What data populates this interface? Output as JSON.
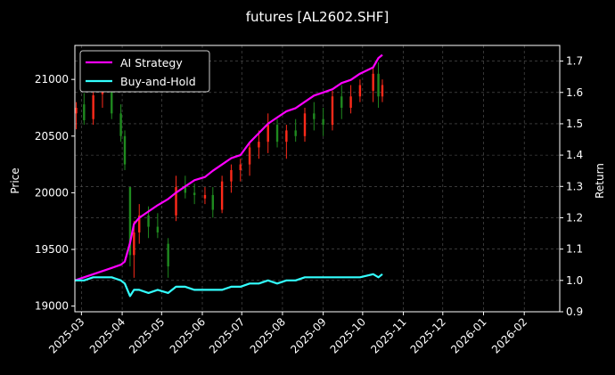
{
  "chart_data": {
    "type": "line",
    "title": "futures [AL2602.SHF]",
    "xlabel": "",
    "ylabel": "Price",
    "y2label": "Return",
    "x_ticks": [
      "2025-03",
      "2025-04",
      "2025-05",
      "2025-06",
      "2025-07",
      "2025-08",
      "2025-09",
      "2025-10",
      "2025-11",
      "2025-12",
      "2026-01",
      "2026-02"
    ],
    "xlim": [
      "2025-02-24",
      "2026-02-28"
    ],
    "ylim": [
      18950,
      21300
    ],
    "y_ticks": [
      19000,
      19500,
      20000,
      20500,
      21000
    ],
    "y2lim": [
      0.9,
      1.75
    ],
    "y2_ticks": [
      "0.9",
      "1.0",
      "1.1",
      "1.2",
      "1.3",
      "1.4",
      "1.5",
      "1.6",
      "1.7"
    ],
    "grid": true,
    "legend_position": "top-left",
    "candles": {
      "up_color": "#ff2a1a",
      "down_color": "#1f8a1f",
      "ohlc": [
        {
          "date": "2025-02-25",
          "open": 20700,
          "high": 20800,
          "low": 20560,
          "close": 20750
        },
        {
          "date": "2025-03-03",
          "open": 20780,
          "high": 20880,
          "low": 20600,
          "close": 20640
        },
        {
          "date": "2025-03-10",
          "open": 20650,
          "high": 20920,
          "low": 20600,
          "close": 20860
        },
        {
          "date": "2025-03-17",
          "open": 20870,
          "high": 21050,
          "low": 20750,
          "close": 20980
        },
        {
          "date": "2025-03-24",
          "open": 20960,
          "high": 21000,
          "low": 20650,
          "close": 20700
        },
        {
          "date": "2025-03-31",
          "open": 20700,
          "high": 20780,
          "low": 20450,
          "close": 20500
        },
        {
          "date": "2025-04-03",
          "open": 20500,
          "high": 20550,
          "low": 20200,
          "close": 20250
        },
        {
          "date": "2025-04-07",
          "open": 20050,
          "high": 20050,
          "low": 19350,
          "close": 19450
        },
        {
          "date": "2025-04-10",
          "open": 19450,
          "high": 19750,
          "low": 19250,
          "close": 19650
        },
        {
          "date": "2025-04-14",
          "open": 19650,
          "high": 19900,
          "low": 19550,
          "close": 19800
        },
        {
          "date": "2025-04-21",
          "open": 19800,
          "high": 19880,
          "low": 19600,
          "close": 19700
        },
        {
          "date": "2025-04-28",
          "open": 19700,
          "high": 19820,
          "low": 19600,
          "close": 19650
        },
        {
          "date": "2025-05-06",
          "open": 19550,
          "high": 19600,
          "low": 19250,
          "close": 19350
        },
        {
          "date": "2025-05-12",
          "open": 19800,
          "high": 20150,
          "low": 19750,
          "close": 20050
        },
        {
          "date": "2025-05-19",
          "open": 20050,
          "high": 20150,
          "low": 19950,
          "close": 20000
        },
        {
          "date": "2025-05-26",
          "open": 20000,
          "high": 20080,
          "low": 19900,
          "close": 19980
        },
        {
          "date": "2025-06-03",
          "open": 19950,
          "high": 20050,
          "low": 19900,
          "close": 19980
        },
        {
          "date": "2025-06-09",
          "open": 19980,
          "high": 20050,
          "low": 19780,
          "close": 19850
        },
        {
          "date": "2025-06-16",
          "open": 19850,
          "high": 20150,
          "low": 19820,
          "close": 20100
        },
        {
          "date": "2025-06-23",
          "open": 20100,
          "high": 20250,
          "low": 20000,
          "close": 20200
        },
        {
          "date": "2025-06-30",
          "open": 20200,
          "high": 20300,
          "low": 20100,
          "close": 20250
        },
        {
          "date": "2025-07-07",
          "open": 20250,
          "high": 20450,
          "low": 20150,
          "close": 20400
        },
        {
          "date": "2025-07-14",
          "open": 20400,
          "high": 20550,
          "low": 20300,
          "close": 20450
        },
        {
          "date": "2025-07-21",
          "open": 20450,
          "high": 20700,
          "low": 20350,
          "close": 20600
        },
        {
          "date": "2025-07-28",
          "open": 20600,
          "high": 20650,
          "low": 20400,
          "close": 20450
        },
        {
          "date": "2025-08-04",
          "open": 20450,
          "high": 20600,
          "low": 20300,
          "close": 20550
        },
        {
          "date": "2025-08-11",
          "open": 20550,
          "high": 20650,
          "low": 20450,
          "close": 20500
        },
        {
          "date": "2025-08-18",
          "open": 20500,
          "high": 20750,
          "low": 20450,
          "close": 20700
        },
        {
          "date": "2025-08-25",
          "open": 20700,
          "high": 20800,
          "low": 20550,
          "close": 20650
        },
        {
          "date": "2025-09-01",
          "open": 20650,
          "high": 20750,
          "low": 20500,
          "close": 20600
        },
        {
          "date": "2025-09-08",
          "open": 20600,
          "high": 20900,
          "low": 20550,
          "close": 20850
        },
        {
          "date": "2025-09-15",
          "open": 20850,
          "high": 20950,
          "low": 20650,
          "close": 20750
        },
        {
          "date": "2025-09-22",
          "open": 20750,
          "high": 20950,
          "low": 20700,
          "close": 20850
        },
        {
          "date": "2025-09-29",
          "open": 20850,
          "high": 21000,
          "low": 20800,
          "close": 20950
        },
        {
          "date": "2025-10-09",
          "open": 20900,
          "high": 21100,
          "low": 20800,
          "close": 21050
        },
        {
          "date": "2025-10-13",
          "open": 21050,
          "high": 21150,
          "low": 20750,
          "close": 20850
        },
        {
          "date": "2025-10-16",
          "open": 20850,
          "high": 21000,
          "low": 20800,
          "close": 20950
        }
      ]
    },
    "series": [
      {
        "name": "AI Strategy",
        "axis": "right",
        "color": "#ff00ff",
        "x": [
          "2025-02-24",
          "2025-03-03",
          "2025-03-10",
          "2025-03-17",
          "2025-03-24",
          "2025-03-31",
          "2025-04-03",
          "2025-04-07",
          "2025-04-10",
          "2025-04-14",
          "2025-04-21",
          "2025-04-28",
          "2025-05-06",
          "2025-05-12",
          "2025-05-19",
          "2025-05-26",
          "2025-06-03",
          "2025-06-09",
          "2025-06-16",
          "2025-06-23",
          "2025-06-30",
          "2025-07-07",
          "2025-07-14",
          "2025-07-21",
          "2025-07-28",
          "2025-08-04",
          "2025-08-11",
          "2025-08-18",
          "2025-08-25",
          "2025-09-01",
          "2025-09-08",
          "2025-09-15",
          "2025-09-22",
          "2025-09-29",
          "2025-10-09",
          "2025-10-13",
          "2025-10-16"
        ],
        "values": [
          1.0,
          1.01,
          1.02,
          1.03,
          1.04,
          1.05,
          1.06,
          1.12,
          1.18,
          1.2,
          1.22,
          1.24,
          1.26,
          1.28,
          1.3,
          1.32,
          1.33,
          1.35,
          1.37,
          1.39,
          1.4,
          1.44,
          1.47,
          1.5,
          1.52,
          1.54,
          1.55,
          1.57,
          1.59,
          1.6,
          1.61,
          1.63,
          1.64,
          1.66,
          1.68,
          1.71,
          1.72
        ]
      },
      {
        "name": "Buy-and-Hold",
        "axis": "right",
        "color": "#33ffff",
        "x": [
          "2025-02-24",
          "2025-03-03",
          "2025-03-10",
          "2025-03-17",
          "2025-03-24",
          "2025-03-31",
          "2025-04-03",
          "2025-04-07",
          "2025-04-10",
          "2025-04-14",
          "2025-04-21",
          "2025-04-28",
          "2025-05-06",
          "2025-05-12",
          "2025-05-19",
          "2025-05-26",
          "2025-06-03",
          "2025-06-09",
          "2025-06-16",
          "2025-06-23",
          "2025-06-30",
          "2025-07-07",
          "2025-07-14",
          "2025-07-21",
          "2025-07-28",
          "2025-08-04",
          "2025-08-11",
          "2025-08-18",
          "2025-08-25",
          "2025-09-01",
          "2025-09-08",
          "2025-09-15",
          "2025-09-22",
          "2025-09-29",
          "2025-10-09",
          "2025-10-13",
          "2025-10-16"
        ],
        "values": [
          1.0,
          1.0,
          1.01,
          1.01,
          1.01,
          1.0,
          0.99,
          0.95,
          0.97,
          0.97,
          0.96,
          0.97,
          0.96,
          0.98,
          0.98,
          0.97,
          0.97,
          0.97,
          0.97,
          0.98,
          0.98,
          0.99,
          0.99,
          1.0,
          0.99,
          1.0,
          1.0,
          1.01,
          1.01,
          1.01,
          1.01,
          1.01,
          1.01,
          1.01,
          1.02,
          1.01,
          1.02
        ]
      }
    ]
  }
}
